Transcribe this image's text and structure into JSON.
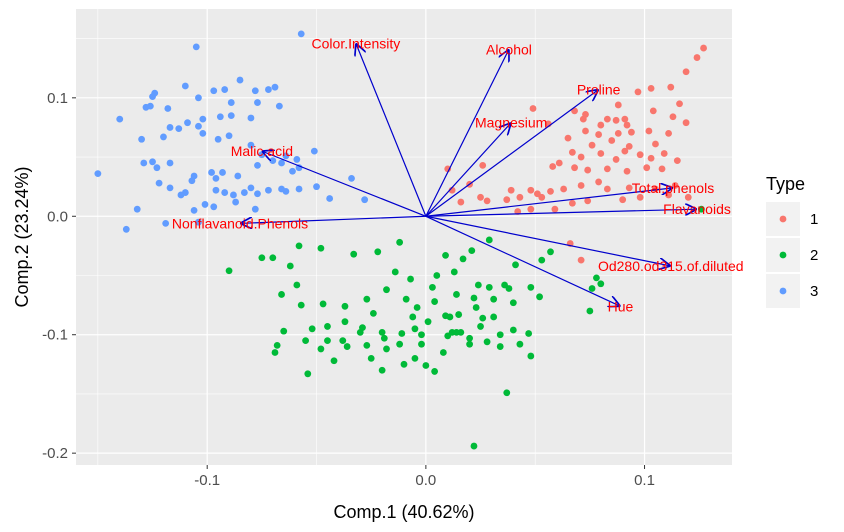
{
  "chart_data": {
    "type": "scatter",
    "title": "",
    "xlabel": "Comp.1 (40.62%)",
    "ylabel": "Comp.2 (23.24%)",
    "xlim": [
      -0.16,
      0.14
    ],
    "ylim": [
      -0.21,
      0.175
    ],
    "x_ticks": [
      -0.1,
      0.0,
      0.1
    ],
    "x_tick_labels": [
      "-0.1",
      "0.0",
      "0.1"
    ],
    "y_ticks": [
      -0.2,
      -0.1,
      0.0,
      0.1
    ],
    "y_tick_labels": [
      "-0.2",
      "-0.1",
      "0.0",
      "0.1"
    ],
    "grid": true,
    "legend": {
      "title": "Type",
      "position": "right"
    },
    "colors": {
      "panel": "#ebebeb",
      "grid": "#ffffff",
      "arrow": "#0000cc",
      "loading_label": "#ff0000"
    },
    "series": [
      {
        "name": "1",
        "color": "#f8766d",
        "points": [
          [
            0.127,
            0.142
          ],
          [
            0.124,
            0.134
          ],
          [
            0.119,
            0.122
          ],
          [
            0.112,
            0.109
          ],
          [
            0.116,
            0.095
          ],
          [
            0.103,
            0.108
          ],
          [
            0.097,
            0.105
          ],
          [
            0.091,
            0.082
          ],
          [
            0.088,
            0.094
          ],
          [
            0.049,
            0.091
          ],
          [
            0.056,
            0.078
          ],
          [
            0.068,
            0.089
          ],
          [
            0.072,
            0.082
          ],
          [
            0.073,
            0.086
          ],
          [
            0.08,
            0.077
          ],
          [
            0.083,
            0.082
          ],
          [
            0.087,
            0.081
          ],
          [
            0.092,
            0.077
          ],
          [
            0.104,
            0.089
          ],
          [
            0.113,
            0.084
          ],
          [
            0.119,
            0.079
          ],
          [
            0.065,
            0.066
          ],
          [
            0.073,
            0.072
          ],
          [
            0.079,
            0.069
          ],
          [
            0.088,
            0.07
          ],
          [
            0.094,
            0.071
          ],
          [
            0.102,
            0.072
          ],
          [
            0.111,
            0.07
          ],
          [
            0.093,
            0.059
          ],
          [
            0.098,
            0.052
          ],
          [
            0.085,
            0.064
          ],
          [
            0.091,
            0.055
          ],
          [
            0.076,
            0.06
          ],
          [
            0.067,
            0.054
          ],
          [
            0.071,
            0.05
          ],
          [
            0.08,
            0.053
          ],
          [
            0.087,
            0.048
          ],
          [
            0.103,
            0.049
          ],
          [
            0.109,
            0.053
          ],
          [
            0.101,
            0.041
          ],
          [
            0.061,
            0.045
          ],
          [
            0.068,
            0.041
          ],
          [
            0.074,
            0.039
          ],
          [
            0.083,
            0.04
          ],
          [
            0.092,
            0.038
          ],
          [
            0.079,
            0.029
          ],
          [
            0.071,
            0.026
          ],
          [
            0.063,
            0.023
          ],
          [
            0.057,
            0.021
          ],
          [
            0.051,
            0.019
          ],
          [
            0.043,
            0.016
          ],
          [
            0.037,
            0.014
          ],
          [
            0.028,
            0.013
          ],
          [
            0.025,
            0.016
          ],
          [
            0.039,
            0.022
          ],
          [
            0.048,
            0.022
          ],
          [
            0.083,
            0.023
          ],
          [
            0.093,
            0.024
          ],
          [
            0.105,
            0.023
          ],
          [
            0.09,
            0.014
          ],
          [
            0.111,
            0.018
          ],
          [
            0.067,
            0.011
          ],
          [
            0.059,
            0.006
          ],
          [
            0.048,
            0.006
          ],
          [
            0.026,
            0.043
          ],
          [
            0.01,
            0.04
          ],
          [
            0.02,
            0.027
          ],
          [
            0.012,
            0.022
          ],
          [
            0.016,
            0.012
          ],
          [
            0.058,
            0.042
          ],
          [
            0.066,
            -0.023
          ],
          [
            0.071,
            -0.037
          ],
          [
            0.053,
            0.016
          ],
          [
            0.042,
            0.004
          ],
          [
            0.074,
            0.013
          ],
          [
            0.114,
            0.026
          ],
          [
            0.098,
            0.016
          ],
          [
            0.12,
            0.016
          ],
          [
            0.108,
            0.04
          ],
          [
            0.105,
            0.061
          ],
          [
            0.115,
            0.047
          ]
        ]
      },
      {
        "name": "2",
        "color": "#00ba38",
        "points": [
          [
            0.126,
            0.006
          ],
          [
            0.078,
            -0.052
          ],
          [
            0.08,
            -0.057
          ],
          [
            0.076,
            -0.061
          ],
          [
            0.075,
            -0.08
          ],
          [
            0.057,
            -0.03
          ],
          [
            0.053,
            -0.037
          ],
          [
            0.041,
            -0.041
          ],
          [
            0.038,
            -0.061
          ],
          [
            0.048,
            -0.06
          ],
          [
            0.052,
            -0.068
          ],
          [
            0.029,
            -0.02
          ],
          [
            0.021,
            -0.029
          ],
          [
            0.013,
            -0.047
          ],
          [
            0.005,
            -0.05
          ],
          [
            -0.012,
            -0.022
          ],
          [
            -0.022,
            -0.03
          ],
          [
            -0.033,
            -0.032
          ],
          [
            -0.048,
            -0.027
          ],
          [
            -0.058,
            -0.025
          ],
          [
            -0.062,
            -0.042
          ],
          [
            -0.07,
            -0.035
          ],
          [
            -0.059,
            -0.058
          ],
          [
            -0.066,
            -0.066
          ],
          [
            -0.057,
            -0.075
          ],
          [
            -0.047,
            -0.074
          ],
          [
            -0.037,
            -0.076
          ],
          [
            -0.027,
            -0.07
          ],
          [
            -0.018,
            -0.062
          ],
          [
            -0.014,
            -0.047
          ],
          [
            -0.007,
            -0.053
          ],
          [
            0.003,
            -0.06
          ],
          [
            0.014,
            -0.066
          ],
          [
            0.022,
            -0.069
          ],
          [
            0.029,
            -0.06
          ],
          [
            0.036,
            -0.058
          ],
          [
            0.04,
            -0.073
          ],
          [
            0.031,
            -0.085
          ],
          [
            0.023,
            -0.077
          ],
          [
            0.015,
            -0.083
          ],
          [
            0.009,
            -0.084
          ],
          [
            0.001,
            -0.089
          ],
          [
            -0.005,
            -0.095
          ],
          [
            -0.011,
            -0.099
          ],
          [
            -0.019,
            -0.103
          ],
          [
            -0.027,
            -0.109
          ],
          [
            -0.029,
            -0.094
          ],
          [
            -0.037,
            -0.089
          ],
          [
            -0.045,
            -0.093
          ],
          [
            -0.052,
            -0.095
          ],
          [
            -0.055,
            -0.105
          ],
          [
            -0.045,
            -0.105
          ],
          [
            -0.036,
            -0.11
          ],
          [
            -0.025,
            -0.12
          ],
          [
            -0.02,
            -0.13
          ],
          [
            -0.01,
            -0.125
          ],
          [
            -0.005,
            -0.12
          ],
          [
            0.0,
            -0.126
          ],
          [
            0.004,
            -0.131
          ],
          [
            0.008,
            -0.115
          ],
          [
            0.014,
            -0.098
          ],
          [
            0.025,
            -0.093
          ],
          [
            0.034,
            -0.1
          ],
          [
            0.04,
            -0.096
          ],
          [
            0.047,
            -0.099
          ],
          [
            0.043,
            -0.108
          ],
          [
            0.034,
            -0.11
          ],
          [
            0.02,
            -0.108
          ],
          [
            0.01,
            -0.101
          ],
          [
            0.012,
            -0.098
          ],
          [
            -0.002,
            -0.108
          ],
          [
            -0.012,
            -0.108
          ],
          [
            -0.02,
            -0.098
          ],
          [
            -0.03,
            -0.098
          ],
          [
            -0.038,
            -0.105
          ],
          [
            -0.048,
            -0.112
          ],
          [
            -0.054,
            -0.133
          ],
          [
            -0.042,
            -0.122
          ],
          [
            -0.018,
            -0.112
          ],
          [
            -0.006,
            -0.085
          ],
          [
            -0.004,
            -0.077
          ],
          [
            -0.009,
            -0.07
          ],
          [
            0.048,
            -0.118
          ],
          [
            0.037,
            -0.149
          ],
          [
            0.022,
            -0.194
          ],
          [
            -0.09,
            -0.046
          ],
          [
            -0.075,
            -0.035
          ],
          [
            -0.065,
            -0.097
          ],
          [
            -0.068,
            -0.109
          ],
          [
            -0.069,
            -0.115
          ],
          [
            0.016,
            -0.098
          ],
          [
            0.02,
            -0.103
          ],
          [
            0.011,
            -0.085
          ],
          [
            0.028,
            -0.106
          ],
          [
            0.009,
            -0.033
          ],
          [
            0.017,
            -0.036
          ],
          [
            -0.002,
            -0.1
          ],
          [
            0.026,
            -0.086
          ],
          [
            0.031,
            -0.07
          ],
          [
            0.024,
            -0.058
          ],
          [
            0.004,
            -0.072
          ],
          [
            -0.024,
            -0.082
          ]
        ]
      },
      {
        "name": "3",
        "color": "#619cff",
        "points": [
          [
            -0.057,
            0.154
          ],
          [
            -0.105,
            0.143
          ],
          [
            -0.124,
            0.104
          ],
          [
            -0.125,
            0.101
          ],
          [
            -0.128,
            0.092
          ],
          [
            -0.126,
            0.093
          ],
          [
            -0.11,
            0.11
          ],
          [
            -0.104,
            0.1
          ],
          [
            -0.089,
            0.096
          ],
          [
            -0.092,
            0.107
          ],
          [
            -0.097,
            0.106
          ],
          [
            -0.085,
            0.115
          ],
          [
            -0.078,
            0.106
          ],
          [
            -0.077,
            0.096
          ],
          [
            -0.072,
            0.107
          ],
          [
            -0.069,
            0.109
          ],
          [
            -0.067,
            0.093
          ],
          [
            -0.08,
            0.083
          ],
          [
            -0.089,
            0.085
          ],
          [
            -0.094,
            0.084
          ],
          [
            -0.102,
            0.082
          ],
          [
            -0.104,
            0.076
          ],
          [
            -0.109,
            0.079
          ],
          [
            -0.118,
            0.091
          ],
          [
            -0.117,
            0.075
          ],
          [
            -0.12,
            0.067
          ],
          [
            -0.13,
            0.065
          ],
          [
            -0.14,
            0.082
          ],
          [
            -0.113,
            0.074
          ],
          [
            -0.102,
            0.07
          ],
          [
            -0.095,
            0.065
          ],
          [
            -0.09,
            0.068
          ],
          [
            -0.08,
            0.06
          ],
          [
            -0.075,
            0.052
          ],
          [
            -0.07,
            0.047
          ],
          [
            -0.064,
            0.051
          ],
          [
            -0.059,
            0.048
          ],
          [
            -0.058,
            0.041
          ],
          [
            -0.066,
            0.045
          ],
          [
            -0.077,
            0.043
          ],
          [
            -0.086,
            0.034
          ],
          [
            -0.093,
            0.037
          ],
          [
            -0.098,
            0.037
          ],
          [
            -0.106,
            0.034
          ],
          [
            -0.107,
            0.03
          ],
          [
            -0.11,
            0.02
          ],
          [
            -0.112,
            0.018
          ],
          [
            -0.117,
            0.024
          ],
          [
            -0.122,
            0.028
          ],
          [
            -0.117,
            0.045
          ],
          [
            -0.125,
            0.046
          ],
          [
            -0.129,
            0.045
          ],
          [
            -0.123,
            0.041
          ],
          [
            -0.15,
            0.036
          ],
          [
            -0.132,
            0.006
          ],
          [
            -0.137,
            -0.011
          ],
          [
            -0.119,
            -0.006
          ],
          [
            -0.104,
            -0.005
          ],
          [
            -0.106,
            0.005
          ],
          [
            -0.101,
            0.01
          ],
          [
            -0.096,
            0.022
          ],
          [
            -0.092,
            0.02
          ],
          [
            -0.088,
            0.018
          ],
          [
            -0.083,
            0.02
          ],
          [
            -0.077,
            0.019
          ],
          [
            -0.072,
            0.022
          ],
          [
            -0.066,
            0.023
          ],
          [
            -0.064,
            0.021
          ],
          [
            -0.058,
            0.023
          ],
          [
            -0.05,
            0.025
          ],
          [
            -0.044,
            0.015
          ],
          [
            -0.028,
            0.014
          ],
          [
            -0.034,
            0.032
          ],
          [
            -0.051,
            0.055
          ],
          [
            -0.061,
            0.038
          ],
          [
            -0.096,
            0.032
          ],
          [
            -0.087,
            0.012
          ],
          [
            -0.078,
            0.006
          ],
          [
            -0.097,
            0.008
          ],
          [
            -0.08,
            0.024
          ]
        ]
      }
    ],
    "loadings": [
      {
        "label": "Color.Intensity",
        "x": -0.032,
        "y": 0.146
      },
      {
        "label": "Alcohol",
        "x": 0.038,
        "y": 0.141
      },
      {
        "label": "Proline",
        "x": 0.079,
        "y": 0.107
      },
      {
        "label": "Magnesium",
        "x": 0.039,
        "y": 0.079
      },
      {
        "label": "Malic.acid",
        "x": -0.075,
        "y": 0.055
      },
      {
        "label": "Total.phenols",
        "x": 0.113,
        "y": 0.024
      },
      {
        "label": "Flavanoids",
        "x": 0.124,
        "y": 0.006
      },
      {
        "label": "Nonflavanoid.Phenols",
        "x": -0.085,
        "y": -0.006
      },
      {
        "label": "Od280.od315.of.diluted",
        "x": 0.112,
        "y": -0.042
      },
      {
        "label": "Hue",
        "x": 0.089,
        "y": -0.076
      }
    ]
  }
}
